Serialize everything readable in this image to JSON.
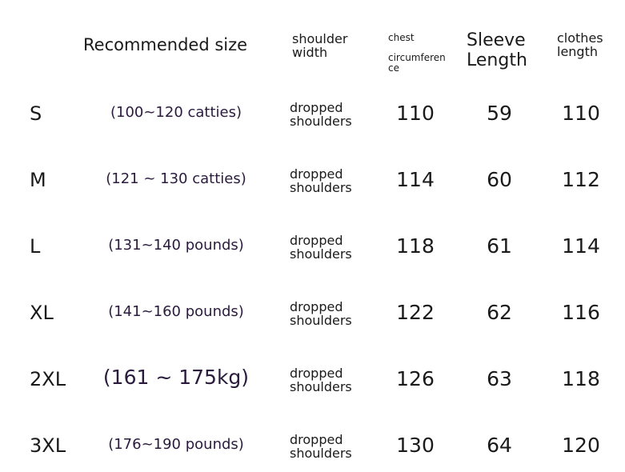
{
  "table": {
    "header": {
      "recommended": "Recommended size",
      "shoulder": "shoulder width",
      "chest_top": "chest",
      "chest_bottom": "circumference",
      "sleeve": "Sleeve Length",
      "length": "clothes length"
    },
    "rows": [
      {
        "size": "S",
        "recommended": "(100~120 catties)",
        "shoulder": "dropped shoulders",
        "chest": 110,
        "sleeve": 59,
        "length": 110
      },
      {
        "size": "M",
        "recommended": "(121 ~ 130 catties)",
        "shoulder": "dropped shoulders",
        "chest": 114,
        "sleeve": 60,
        "length": 112
      },
      {
        "size": "L",
        "recommended": "(131~140 pounds)",
        "shoulder": "dropped shoulders",
        "chest": 118,
        "sleeve": 61,
        "length": 114
      },
      {
        "size": "XL",
        "recommended": "(141~160 pounds)",
        "shoulder": "dropped shoulders",
        "chest": 122,
        "sleeve": 62,
        "length": 116
      },
      {
        "size": "2XL",
        "recommended": "(161 ~ 175kg)",
        "shoulder": "dropped shoulders",
        "chest": 126,
        "sleeve": 63,
        "length": 118
      },
      {
        "size": "3XL",
        "recommended": "(176~190 pounds)",
        "shoulder": "dropped shoulders",
        "chest": 130,
        "sleeve": 64,
        "length": 120
      }
    ]
  }
}
